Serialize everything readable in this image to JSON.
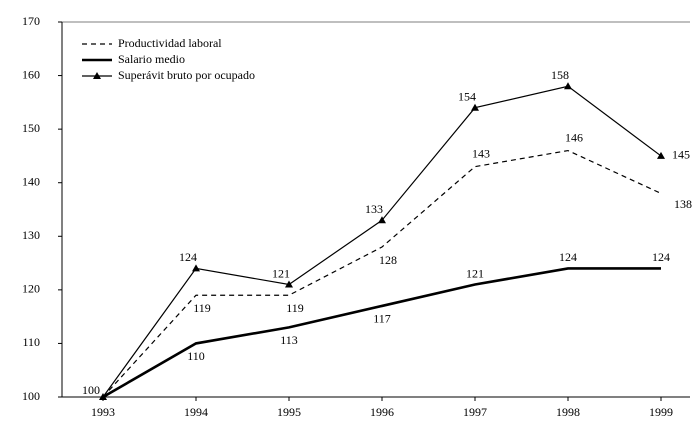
{
  "chart_data": {
    "type": "line",
    "categories": [
      "1993",
      "1994",
      "1995",
      "1996",
      "1997",
      "1998",
      "1999"
    ],
    "series": [
      {
        "name": "Productividad laboral",
        "color": "#000000",
        "style": "dashed",
        "values": [
          100,
          119,
          119,
          128,
          143,
          146,
          138
        ]
      },
      {
        "name": "Salario medio",
        "color": "#000000",
        "style": "thick",
        "values": [
          100,
          110,
          113,
          117,
          121,
          124,
          124
        ]
      },
      {
        "name": "Superávit bruto por ocupado",
        "color": "#000000",
        "style": "triangle",
        "values": [
          100,
          124,
          121,
          133,
          154,
          158,
          145
        ]
      }
    ],
    "ylim": [
      100,
      170
    ],
    "yticks": [
      100,
      110,
      120,
      130,
      140,
      150,
      160,
      170
    ],
    "legend": "upper left"
  }
}
